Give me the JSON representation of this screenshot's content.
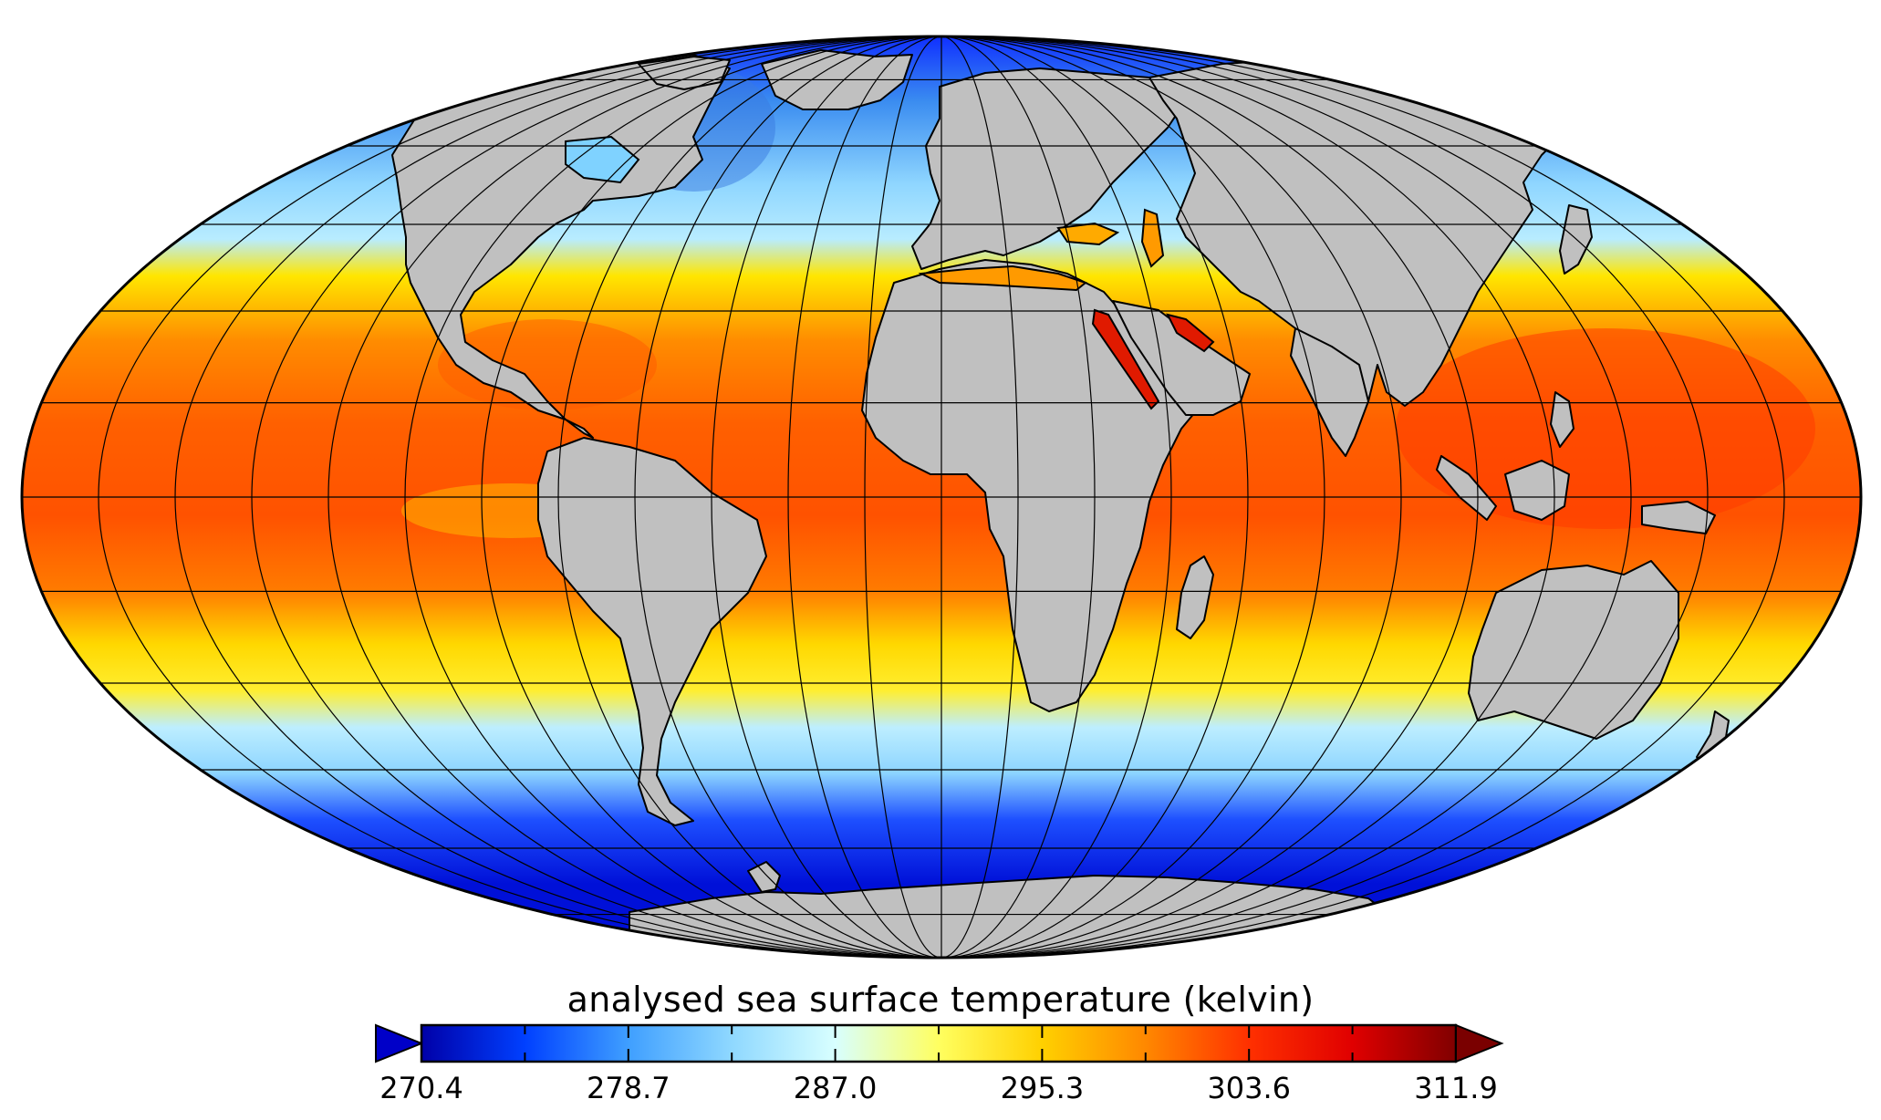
{
  "map": {
    "projection": "Mollweide",
    "ocean_field": "analysed sea surface temperature",
    "land_color": "#c0c0c0",
    "coastline_color": "#000000",
    "graticule": "on"
  },
  "colorbar": {
    "title": "analysed sea surface temperature (kelvin)",
    "min": 270.4,
    "max": 311.9,
    "tick_labels": [
      "270.4",
      "278.7",
      "287.0",
      "295.3",
      "303.6",
      "311.9"
    ],
    "extend": "both",
    "colors": [
      "#0000a8",
      "#0040ff",
      "#3f9fff",
      "#8fd8ff",
      "#d8ffff",
      "#ffff60",
      "#ffd000",
      "#ff8800",
      "#ff3000",
      "#e00000",
      "#800000"
    ]
  }
}
